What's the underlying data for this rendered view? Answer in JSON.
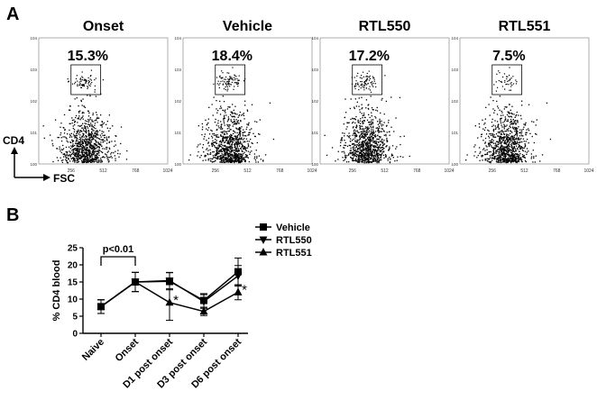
{
  "panel_a": {
    "label": "A",
    "y_axis_label": "CD4",
    "x_axis_label": "FSC",
    "x_ticks": [
      "0",
      "256",
      "512",
      "768",
      "1024"
    ],
    "y_ticks": [
      "10^0",
      "10^1",
      "10^2",
      "10^3",
      "10^4"
    ],
    "plots": [
      {
        "title": "Onset",
        "gate_percent": "15.3%"
      },
      {
        "title": "Vehicle",
        "gate_percent": "18.4%"
      },
      {
        "title": "RTL550",
        "gate_percent": "17.2%"
      },
      {
        "title": "RTL551",
        "gate_percent": "7.5%"
      }
    ]
  },
  "panel_b": {
    "label": "B",
    "significance": "p<0.01",
    "star": "*"
  },
  "chart_data": {
    "type": "line",
    "categories": [
      "Naive",
      "Onset",
      "D1 post onset",
      "D3 post onset",
      "D6 post onset"
    ],
    "ylabel": "% CD4 blood",
    "xlabel": "",
    "ylim": [
      0,
      25
    ],
    "yticks": [
      0,
      5,
      10,
      15,
      20,
      25
    ],
    "legend_position": "top-right",
    "series": [
      {
        "name": "Vehicle",
        "marker": "square",
        "values": [
          7.8,
          15.0,
          15.2,
          9.6,
          18.0
        ],
        "err": [
          2.0,
          2.8,
          2.5,
          2.0,
          4.0
        ]
      },
      {
        "name": "RTL550",
        "marker": "triangle-down",
        "values": [
          7.8,
          15.0,
          15.4,
          9.3,
          16.8
        ],
        "err": [
          2.0,
          2.8,
          2.4,
          2.0,
          3.0
        ]
      },
      {
        "name": "RTL551",
        "marker": "triangle-up",
        "values": [
          7.8,
          15.0,
          9.0,
          6.4,
          12.0
        ],
        "err": [
          2.0,
          2.8,
          5.2,
          1.2,
          2.2
        ]
      }
    ],
    "stars_at": [
      "D1 post onset",
      "D6 post onset"
    ]
  }
}
